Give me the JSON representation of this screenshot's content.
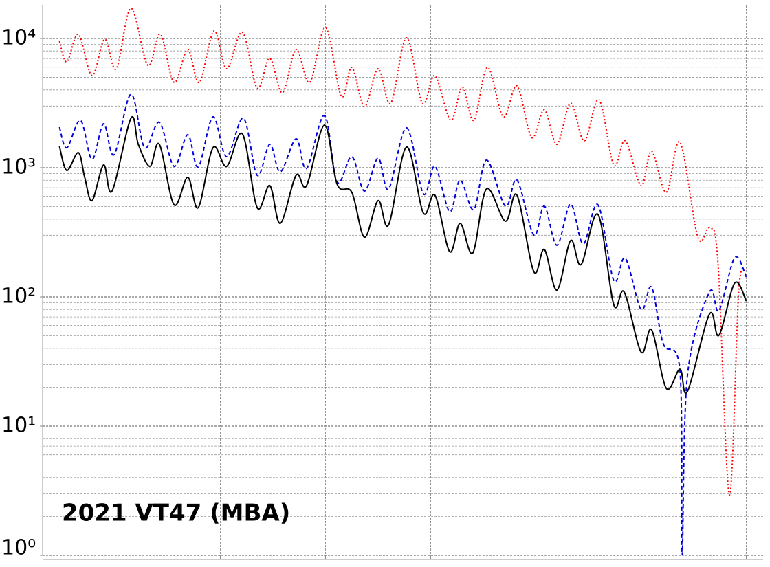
{
  "chart_data": {
    "type": "line",
    "title": "2021 VT47 (MBA)",
    "log_y": true,
    "grid": true,
    "minor_grid": true,
    "xlim": [
      -6.9,
      61.6
    ],
    "xticks": [
      0,
      10,
      20,
      30,
      40,
      50,
      60
    ],
    "ylim": [
      1,
      18000
    ],
    "yticks": [
      {
        "value": 1,
        "label": "10⁰"
      },
      {
        "value": 10,
        "label": "10¹"
      },
      {
        "value": 100,
        "label": "10²"
      },
      {
        "value": 1000,
        "label": "10³"
      },
      {
        "value": 10000,
        "label": "10⁴"
      }
    ],
    "series": [
      {
        "color": "#ff0000",
        "style": "dotted",
        "x": [
          -5.3,
          -4.6,
          -3.5,
          -2.2,
          -1.0,
          0.1,
          1.5,
          3.1,
          4.3,
          5.6,
          6.9,
          8.0,
          9.4,
          10.6,
          12.1,
          13.5,
          14.7,
          15.9,
          17.2,
          18.5,
          20.0,
          21.5,
          22.5,
          23.7,
          25.0,
          26.2,
          27.7,
          29.2,
          30.4,
          31.9,
          33.0,
          34.1,
          35.4,
          36.9,
          38.2,
          39.6,
          40.8,
          42.0,
          43.3,
          44.6,
          46.0,
          47.4,
          48.5,
          50.0,
          51.0,
          52.4,
          53.7,
          55.4,
          56.5,
          57.3,
          58.4,
          59.3,
          60.0
        ],
        "values": [
          9520,
          6590,
          10770,
          5160,
          9880,
          5830,
          17140,
          6200,
          10770,
          4570,
          8220,
          4570,
          11450,
          5830,
          11170,
          4140,
          7010,
          3800,
          8220,
          4570,
          12170,
          3570,
          5980,
          2970,
          5830,
          3160,
          10120,
          3160,
          5160,
          2328,
          4190,
          2328,
          5980,
          2475,
          4300,
          1714,
          2800,
          1517,
          3160,
          1612,
          3360,
          1050,
          1612,
          727,
          1342,
          644,
          1574,
          290,
          340,
          189,
          2.94,
          116,
          148
        ]
      },
      {
        "color": "#0000dd",
        "style": "dashed",
        "x": [
          -5.3,
          -4.6,
          -3.3,
          -2.2,
          -1.1,
          -0.1,
          1.5,
          2.8,
          4.2,
          5.6,
          6.9,
          7.9,
          9.3,
          10.6,
          12.2,
          13.5,
          14.7,
          15.7,
          17.2,
          18.2,
          19.9,
          21.1,
          22.5,
          23.7,
          25.0,
          26.0,
          27.7,
          29.3,
          30.4,
          31.8,
          32.8,
          34.1,
          35.3,
          37.1,
          38.2,
          39.8,
          40.8,
          42.0,
          43.3,
          44.5,
          45.9,
          47.4,
          48.5,
          50.0,
          51.0,
          52.1,
          53.7,
          53.9,
          54.4,
          56.5,
          57.4,
          58.9,
          60.0
        ],
        "values": [
          2061,
          1426,
          2328,
          1158,
          2190,
          1262,
          3710,
          1426,
          2244,
          1025,
          1800,
          1012,
          2475,
          1217,
          2415,
          874,
          1517,
          929,
          1672,
          988,
          2537,
          773,
          1217,
          659,
          1187,
          684,
          2036,
          628,
          1025,
          457,
          802,
          474,
          1145,
          504,
          802,
          301,
          504,
          251,
          522,
          257,
          516,
          134,
          199,
          80,
          119,
          43.5,
          26.6,
          1,
          24.2,
          109,
          78.3,
          201,
          143
        ]
      },
      {
        "color": "#000000",
        "style": "solid",
        "x": [
          -5.3,
          -4.6,
          -3.5,
          -2.9,
          -2.2,
          -1.1,
          -0.3,
          1.5,
          2.2,
          3.3,
          4.2,
          5.6,
          6.9,
          7.9,
          9.3,
          10.6,
          12.1,
          13.5,
          14.7,
          15.7,
          17.2,
          18.2,
          19.9,
          21.1,
          22.5,
          23.7,
          25.0,
          26.0,
          27.7,
          29.3,
          30.4,
          31.8,
          32.8,
          34.0,
          35.3,
          37.1,
          38.2,
          39.8,
          40.8,
          42.0,
          43.3,
          44.3,
          45.9,
          47.4,
          48.4,
          50.0,
          51.0,
          52.4,
          53.7,
          54.4,
          56.5,
          57.4,
          58.9,
          60.0
        ],
        "values": [
          1462,
          952,
          1309,
          843,
          556,
          1050,
          659,
          2415,
          1517,
          1025,
          1517,
          516,
          843,
          491,
          1426,
          1025,
          1823,
          491,
          727,
          371,
          874,
          727,
          2138,
          745,
          644,
          290,
          556,
          362,
          1445,
          446,
          612,
          224,
          371,
          219,
          684,
          385,
          612,
          157,
          233,
          113,
          273,
          178,
          435,
          87,
          109,
          37.5,
          55.6,
          19.6,
          27.6,
          18.5,
          73.6,
          50.4,
          128,
          93
        ]
      }
    ]
  }
}
